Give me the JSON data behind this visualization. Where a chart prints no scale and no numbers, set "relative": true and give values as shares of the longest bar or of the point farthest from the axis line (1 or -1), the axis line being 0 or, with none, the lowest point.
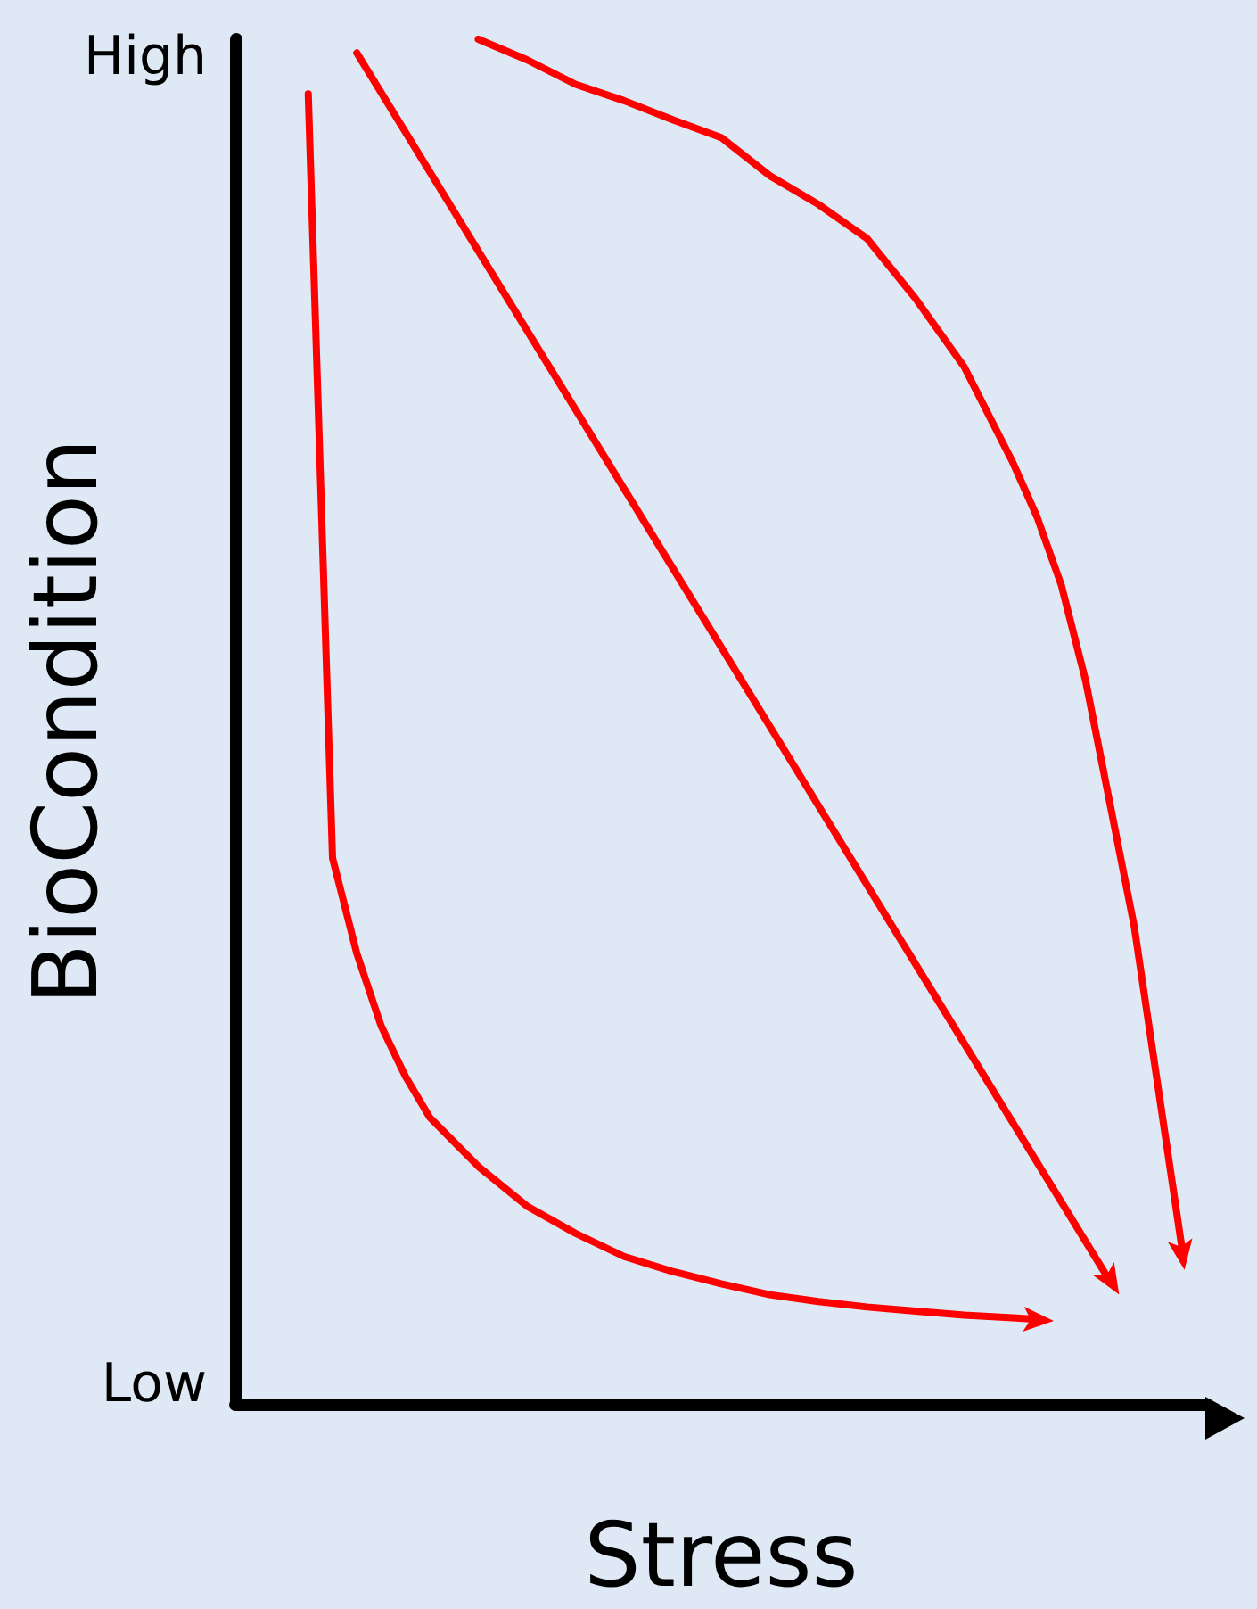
{
  "chart_data": {
    "type": "line",
    "relative": true,
    "xlabel": "Stress",
    "ylabel": "BioCondition",
    "annotations": [
      "High",
      "Low"
    ],
    "line_style": "solid",
    "categories": [
      null,
      null,
      null,
      null,
      null,
      null,
      null,
      null,
      null,
      null,
      null,
      null,
      null,
      null,
      null,
      null,
      null,
      null,
      null,
      null,
      null,
      null,
      null,
      null,
      null,
      null,
      null,
      null,
      null,
      null,
      null,
      null,
      null,
      null,
      null,
      null,
      null,
      null,
      null,
      null,
      null
    ],
    "series": [
      {
        "color": "#ff0000",
        "values": [
          null,
          null,
          null,
          0.96,
          0.4,
          0.33,
          0.277,
          0.24,
          0.21,
          null,
          0.174,
          null,
          0.145,
          null,
          0.125,
          null,
          0.108,
          null,
          0.097,
          null,
          0.088,
          null,
          0.08,
          null,
          0.075,
          null,
          0.071,
          null,
          0.068,
          null,
          0.065,
          null,
          0.063,
          0.062,
          null,
          null,
          null,
          null,
          null,
          null,
          null
        ]
      },
      {
        "color": "#ff0000",
        "values": [
          null,
          null,
          null,
          null,
          null,
          0.99,
          null,
          null,
          null,
          null,
          null,
          null,
          null,
          null,
          null,
          null,
          null,
          null,
          null,
          null,
          null,
          null,
          null,
          null,
          null,
          null,
          null,
          null,
          null,
          null,
          null,
          null,
          null,
          null,
          null,
          null,
          0.09,
          null,
          null,
          null,
          null
        ]
      },
      {
        "color": "#ff0000",
        "values": [
          null,
          null,
          null,
          null,
          null,
          null,
          null,
          null,
          null,
          null,
          1,
          null,
          0.985,
          null,
          0.967,
          null,
          0.955,
          null,
          0.941,
          null,
          0.928,
          null,
          0.9,
          null,
          0.879,
          null,
          0.854,
          null,
          0.81,
          null,
          0.76,
          null,
          0.69,
          0.65,
          0.6,
          0.53,
          0.44,
          0.35,
          0.23,
          0.11,
          null
        ]
      }
    ]
  }
}
